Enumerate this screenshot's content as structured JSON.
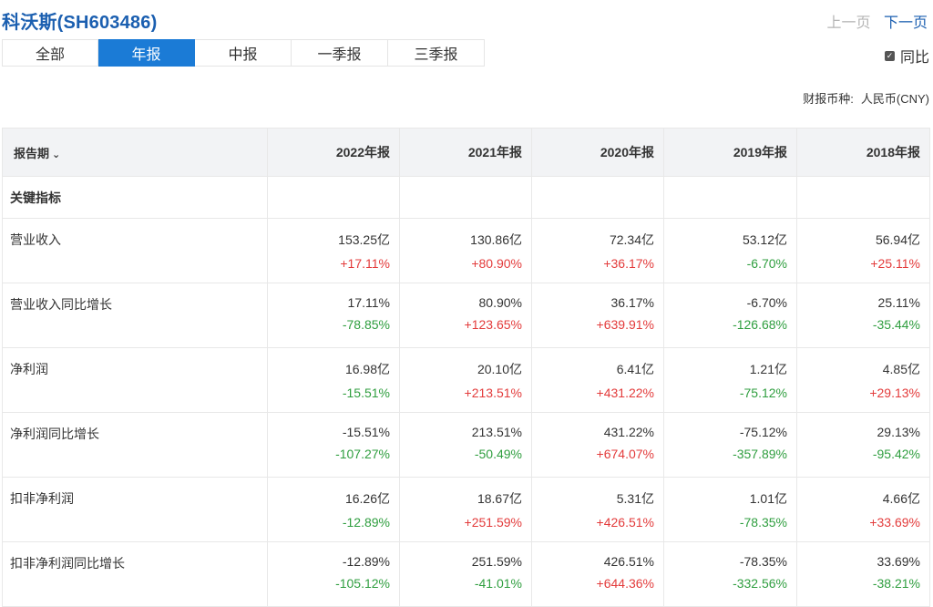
{
  "header": {
    "title": "科沃斯(SH603486)",
    "prev": "上一页",
    "next": "下一页"
  },
  "tabs": [
    {
      "label": "全部",
      "active": false
    },
    {
      "label": "年报",
      "active": true
    },
    {
      "label": "中报",
      "active": false
    },
    {
      "label": "一季报",
      "active": false
    },
    {
      "label": "三季报",
      "active": false
    }
  ],
  "yoy": {
    "label": "同比",
    "checked": true
  },
  "currency": {
    "label": "财报币种:",
    "value": "人民币(CNY)"
  },
  "table": {
    "first_header": "报告期",
    "periods": [
      "2022年报",
      "2021年报",
      "2020年报",
      "2019年报",
      "2018年报"
    ],
    "section": "关键指标",
    "rows": [
      {
        "label": "营业收入",
        "values": [
          "153.25亿",
          "130.86亿",
          "72.34亿",
          "53.12亿",
          "56.94亿"
        ],
        "changes": [
          "+17.11%",
          "+80.90%",
          "+36.17%",
          "-6.70%",
          "+25.11%"
        ]
      },
      {
        "label": "营业收入同比增长",
        "values": [
          "17.11%",
          "80.90%",
          "36.17%",
          "-6.70%",
          "25.11%"
        ],
        "changes": [
          "-78.85%",
          "+123.65%",
          "+639.91%",
          "-126.68%",
          "-35.44%"
        ]
      },
      {
        "label": "净利润",
        "values": [
          "16.98亿",
          "20.10亿",
          "6.41亿",
          "1.21亿",
          "4.85亿"
        ],
        "changes": [
          "-15.51%",
          "+213.51%",
          "+431.22%",
          "-75.12%",
          "+29.13%"
        ]
      },
      {
        "label": "净利润同比增长",
        "values": [
          "-15.51%",
          "213.51%",
          "431.22%",
          "-75.12%",
          "29.13%"
        ],
        "changes": [
          "-107.27%",
          "-50.49%",
          "+674.07%",
          "-357.89%",
          "-95.42%"
        ]
      },
      {
        "label": "扣非净利润",
        "values": [
          "16.26亿",
          "18.67亿",
          "5.31亿",
          "1.01亿",
          "4.66亿"
        ],
        "changes": [
          "-12.89%",
          "+251.59%",
          "+426.51%",
          "-78.35%",
          "+33.69%"
        ]
      },
      {
        "label": "扣非净利润同比增长",
        "values": [
          "-12.89%",
          "251.59%",
          "426.51%",
          "-78.35%",
          "33.69%"
        ],
        "changes": [
          "-105.12%",
          "-41.01%",
          "+644.36%",
          "-332.56%",
          "-38.21%"
        ]
      }
    ]
  },
  "colors": {
    "accent": "#1b7bd6",
    "title": "#1b5fb0",
    "up": "#e33b3b",
    "down": "#2f9e3f"
  }
}
